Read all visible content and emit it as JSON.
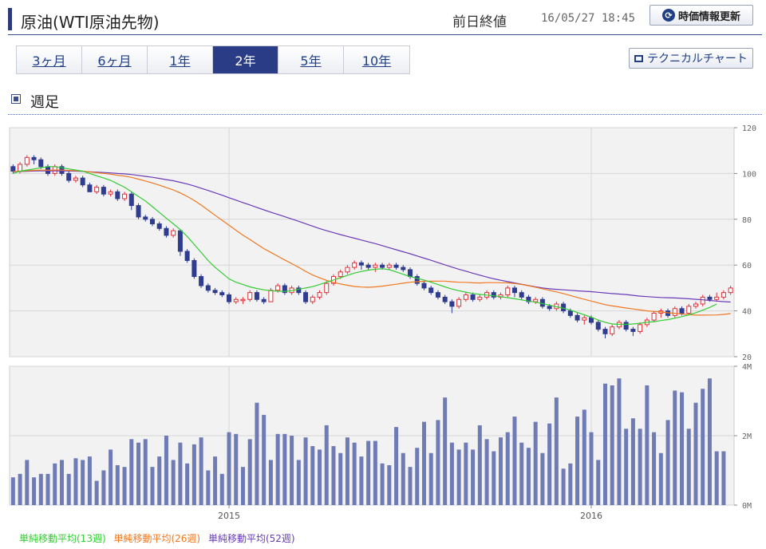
{
  "header": {
    "title": "原油(WTI原油先物)",
    "prev_close_label": "前日終値",
    "datetime": "16/05/27 18:45",
    "refresh_label": "時価情報更新"
  },
  "tabs": [
    {
      "label": "3ヶ月",
      "active": false
    },
    {
      "label": "6ヶ月",
      "active": false
    },
    {
      "label": "1年",
      "active": false
    },
    {
      "label": "2年",
      "active": true
    },
    {
      "label": "5年",
      "active": false
    },
    {
      "label": "10年",
      "active": false
    }
  ],
  "technical_button": "テクニカルチャート",
  "section_title": "週足",
  "colors": {
    "up": "#e0303a",
    "down": "#2f3c8f",
    "volume": "#6f7bb5",
    "sma13": "#33cc33",
    "sma26": "#f07820",
    "sma52": "#6a3ab8"
  },
  "chart_data": [
    {
      "type": "candlestick",
      "y_ticks": [
        "120",
        "100",
        "80",
        "60",
        "40",
        "20"
      ],
      "ylim": [
        20,
        120
      ],
      "x_ticks": [
        {
          "label": "2015",
          "index": 31
        },
        {
          "label": "2016",
          "index": 83
        }
      ],
      "candles": [
        [
          103,
          101,
          104,
          100
        ],
        [
          101,
          104,
          105,
          100
        ],
        [
          104,
          107,
          108,
          103
        ],
        [
          107,
          106,
          108,
          104
        ],
        [
          106,
          103,
          107,
          102
        ],
        [
          103,
          100,
          104,
          99
        ],
        [
          100,
          103,
          104,
          99
        ],
        [
          103,
          100,
          104,
          99
        ],
        [
          100,
          97,
          101,
          96
        ],
        [
          97,
          98,
          99,
          96
        ],
        [
          98,
          95,
          99,
          94
        ],
        [
          95,
          92,
          96,
          92
        ],
        [
          92,
          94,
          95,
          91
        ],
        [
          94,
          91,
          95,
          90
        ],
        [
          91,
          92,
          93,
          90
        ],
        [
          92,
          89,
          93,
          88
        ],
        [
          89,
          91,
          92,
          88
        ],
        [
          91,
          86,
          92,
          84
        ],
        [
          86,
          81,
          87,
          80
        ],
        [
          81,
          80,
          82,
          79
        ],
        [
          80,
          78,
          81,
          77
        ],
        [
          78,
          76,
          79,
          75
        ],
        [
          76,
          73,
          77,
          72
        ],
        [
          73,
          75,
          76,
          72
        ],
        [
          75,
          66,
          75,
          64
        ],
        [
          66,
          62,
          67,
          61
        ],
        [
          62,
          55,
          63,
          54
        ],
        [
          55,
          51,
          56,
          50
        ],
        [
          51,
          49,
          52,
          48
        ],
        [
          49,
          48,
          50,
          47
        ],
        [
          48,
          47,
          49,
          46
        ],
        [
          47,
          44,
          48,
          43
        ],
        [
          44,
          45,
          46,
          43
        ],
        [
          45,
          45,
          46,
          43
        ],
        [
          45,
          48,
          49,
          44
        ],
        [
          48,
          45,
          49,
          44
        ],
        [
          45,
          44,
          46,
          43
        ],
        [
          44,
          49,
          50,
          44
        ],
        [
          49,
          51,
          52,
          48
        ],
        [
          51,
          48,
          52,
          47
        ],
        [
          48,
          50,
          51,
          47
        ],
        [
          50,
          48,
          51,
          47
        ],
        [
          48,
          44,
          49,
          43
        ],
        [
          44,
          46,
          47,
          43
        ],
        [
          46,
          48,
          49,
          45
        ],
        [
          48,
          52,
          53,
          47
        ],
        [
          52,
          55,
          56,
          51
        ],
        [
          55,
          57,
          58,
          54
        ],
        [
          57,
          59,
          60,
          56
        ],
        [
          59,
          61,
          62,
          58
        ],
        [
          61,
          60,
          62,
          58
        ],
        [
          60,
          59,
          61,
          58
        ],
        [
          59,
          60,
          61,
          57
        ],
        [
          60,
          59,
          61,
          58
        ],
        [
          59,
          60,
          61,
          58
        ],
        [
          60,
          59,
          61,
          58
        ],
        [
          59,
          58,
          60,
          57
        ],
        [
          58,
          55,
          59,
          54
        ],
        [
          55,
          52,
          56,
          51
        ],
        [
          52,
          50,
          53,
          49
        ],
        [
          50,
          48,
          51,
          47
        ],
        [
          48,
          46,
          49,
          45
        ],
        [
          46,
          44,
          47,
          43
        ],
        [
          44,
          42,
          45,
          39
        ],
        [
          42,
          45,
          46,
          41
        ],
        [
          45,
          47,
          48,
          44
        ],
        [
          47,
          45,
          48,
          44
        ],
        [
          45,
          46,
          47,
          44
        ],
        [
          46,
          48,
          49,
          45
        ],
        [
          48,
          46,
          49,
          45
        ],
        [
          46,
          47,
          48,
          45
        ],
        [
          47,
          50,
          51,
          46
        ],
        [
          50,
          48,
          51,
          46
        ],
        [
          48,
          46,
          49,
          45
        ],
        [
          46,
          44,
          47,
          43
        ],
        [
          44,
          45,
          46,
          43
        ],
        [
          45,
          42,
          46,
          41
        ],
        [
          42,
          41,
          43,
          40
        ],
        [
          41,
          43,
          44,
          40
        ],
        [
          43,
          40,
          44,
          39
        ],
        [
          40,
          38,
          41,
          37
        ],
        [
          38,
          36,
          39,
          35
        ],
        [
          36,
          37,
          38,
          34
        ],
        [
          37,
          35,
          38,
          34
        ],
        [
          35,
          32,
          36,
          31
        ],
        [
          32,
          30,
          33,
          28
        ],
        [
          30,
          33,
          34,
          29
        ],
        [
          33,
          35,
          36,
          32
        ],
        [
          35,
          32,
          36,
          31
        ],
        [
          32,
          31,
          33,
          29
        ],
        [
          31,
          34,
          35,
          30
        ],
        [
          34,
          36,
          37,
          33
        ],
        [
          36,
          39,
          40,
          35
        ],
        [
          39,
          40,
          41,
          37
        ],
        [
          40,
          38,
          41,
          37
        ],
        [
          38,
          41,
          42,
          37
        ],
        [
          41,
          39,
          42,
          38
        ],
        [
          39,
          42,
          43,
          38
        ],
        [
          42,
          43,
          44,
          41
        ],
        [
          43,
          46,
          47,
          42
        ],
        [
          46,
          45,
          47,
          44
        ],
        [
          45,
          46,
          48,
          44
        ],
        [
          46,
          48,
          49,
          45
        ],
        [
          48,
          50,
          51,
          47
        ]
      ],
      "sma13": [
        100,
        101,
        101.5,
        102,
        102.5,
        103,
        103,
        102.5,
        102,
        101.5,
        101,
        100,
        99,
        98,
        97,
        95.5,
        94,
        92,
        90,
        88,
        85.5,
        83,
        80.5,
        78,
        75.5,
        72.5,
        69,
        65.5,
        62,
        59,
        56.5,
        54,
        52.5,
        51.5,
        50.5,
        49.8,
        49.2,
        48.8,
        48.6,
        48.5,
        48.8,
        49.5,
        50,
        50.6,
        51.5,
        52.5,
        53.5,
        54.5,
        55.5,
        56.5,
        57.2,
        57.8,
        58.2,
        58.4,
        58,
        57,
        56,
        55,
        54.2,
        53.5,
        52.5,
        51.5,
        50.5,
        49.5,
        48.8,
        48.2,
        47.6,
        47.2,
        46.9,
        46.6,
        46.2,
        45.8,
        45.3,
        44.8,
        44.3,
        43.8,
        43.2,
        42.5,
        41.8,
        41.2,
        40.3,
        39.3,
        38.3,
        37.2,
        36,
        35,
        34.3,
        34.1,
        34.1,
        34.3,
        34.6,
        35,
        35.3,
        35.8,
        36.2,
        36.8,
        37.5,
        38.3,
        39.2,
        40.3,
        41.5,
        43
      ]
    },
    {
      "type": "bar",
      "y_ticks": [
        "4M",
        "2M",
        "0M"
      ],
      "ylim": [
        0,
        4
      ],
      "volumes": [
        0.8,
        0.9,
        1.3,
        0.8,
        0.9,
        0.9,
        1.2,
        1.3,
        0.9,
        1.35,
        1.3,
        1.4,
        0.7,
        1.0,
        1.6,
        1.15,
        1.1,
        1.9,
        1.8,
        1.9,
        1.1,
        1.4,
        2.0,
        1.3,
        1.8,
        1.2,
        1.75,
        1.95,
        1.0,
        1.4,
        0.9,
        2.1,
        2.05,
        1.1,
        1.9,
        2.95,
        2.6,
        1.3,
        2.05,
        2.05,
        2.0,
        1.3,
        1.95,
        1.7,
        1.6,
        2.3,
        1.7,
        1.5,
        1.95,
        1.8,
        1.4,
        1.85,
        1.85,
        1.2,
        1.15,
        2.25,
        1.5,
        1.1,
        1.65,
        2.4,
        1.5,
        2.45,
        3.1,
        1.8,
        1.6,
        1.8,
        1.6,
        2.3,
        1.9,
        1.55,
        1.95,
        2.1,
        2.55,
        1.8,
        1.65,
        2.4,
        1.5,
        2.35,
        3.1,
        1.05,
        1.2,
        2.55,
        2.75,
        2.1,
        1.3,
        3.5,
        3.45,
        3.65,
        2.2,
        2.5,
        2.2,
        3.45,
        2.1,
        1.5,
        2.45,
        3.3,
        3.25,
        2.2,
        2.95,
        3.35,
        3.65,
        1.55,
        1.55
      ]
    }
  ],
  "legend": [
    "単純移動平均(13週)",
    "単純移動平均(26週)",
    "単純移動平均(52週)"
  ]
}
